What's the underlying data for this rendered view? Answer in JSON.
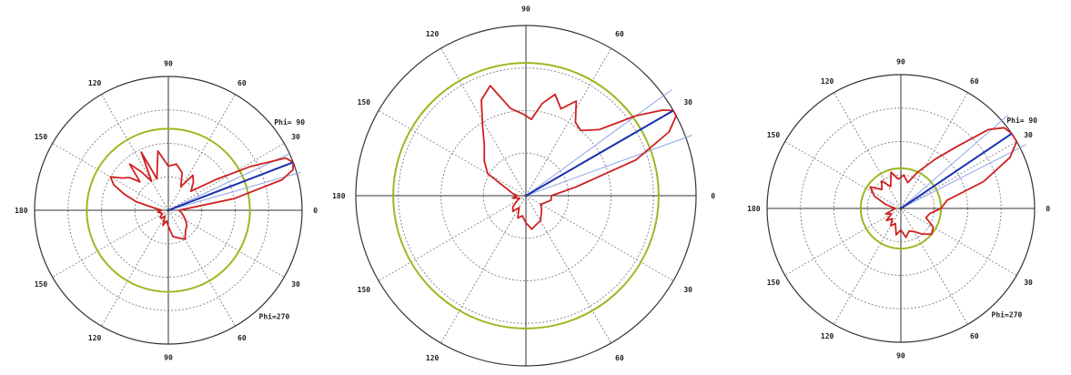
{
  "chart_data": [
    {
      "type": "polar",
      "rings": 4,
      "angle_labels": [
        {
          "deg": 0,
          "text": "0"
        },
        {
          "deg": 30,
          "text": "30"
        },
        {
          "deg": 60,
          "text": "60"
        },
        {
          "deg": 90,
          "text": "90"
        },
        {
          "deg": 120,
          "text": "120"
        },
        {
          "deg": 150,
          "text": "150"
        },
        {
          "deg": 180,
          "text": "180"
        },
        {
          "deg": 210,
          "text": "150"
        },
        {
          "deg": 240,
          "text": "120"
        },
        {
          "deg": 270,
          "text": "90"
        },
        {
          "deg": 300,
          "text": "60"
        },
        {
          "deg": 330,
          "text": "30"
        }
      ],
      "annotations": [
        {
          "deg": 36,
          "text": "Phi= 90"
        },
        {
          "deg": 315,
          "text": "Phi=270"
        }
      ],
      "green_ring": 0.61,
      "main_beam": {
        "deg": 21,
        "r": 1.0
      },
      "aux_lines": [
        {
          "deg": 25,
          "r": 1.0
        },
        {
          "deg": 16,
          "r": 1.03
        }
      ],
      "pattern": {
        "series_color": "#d02020",
        "theta": [
          0,
          10,
          15,
          18,
          21,
          24,
          28,
          33,
          40,
          48,
          55,
          62,
          70,
          80,
          90,
          100,
          110,
          115,
          120,
          125,
          130,
          135,
          140,
          145,
          150,
          155,
          160,
          165,
          170,
          180,
          190,
          200,
          210,
          220,
          230,
          240,
          250,
          260,
          270,
          280,
          290,
          300,
          310,
          320,
          330,
          340,
          350,
          360
        ],
        "r": [
          0.08,
          0.5,
          0.88,
          0.98,
          1.0,
          0.96,
          0.7,
          0.42,
          0.22,
          0.28,
          0.32,
          0.2,
          0.3,
          0.35,
          0.33,
          0.45,
          0.25,
          0.48,
          0.25,
          0.35,
          0.45,
          0.3,
          0.38,
          0.42,
          0.5,
          0.45,
          0.35,
          0.25,
          0.12,
          0.05,
          0.08,
          0.06,
          0.05,
          0.08,
          0.08,
          0.05,
          0.12,
          0.08,
          0.12,
          0.2,
          0.22,
          0.25,
          0.2,
          0.18,
          0.15,
          0.12,
          0.1,
          0.08
        ]
      }
    },
    {
      "type": "polar",
      "rings": 4,
      "angle_labels": [
        {
          "deg": 0,
          "text": "0"
        },
        {
          "deg": 30,
          "text": "30"
        },
        {
          "deg": 60,
          "text": "60"
        },
        {
          "deg": 90,
          "text": "90"
        },
        {
          "deg": 120,
          "text": "120"
        },
        {
          "deg": 150,
          "text": "150"
        },
        {
          "deg": 180,
          "text": "180"
        },
        {
          "deg": 210,
          "text": "150"
        },
        {
          "deg": 240,
          "text": "120"
        },
        {
          "deg": 270,
          "text": "90"
        },
        {
          "deg": 300,
          "text": "60"
        },
        {
          "deg": 330,
          "text": "30"
        }
      ],
      "annotations": [],
      "green_ring": 0.78,
      "main_beam": {
        "deg": 30,
        "r": 1.0
      },
      "aux_lines": [
        {
          "deg": 36,
          "r": 1.06
        },
        {
          "deg": 20,
          "r": 1.04
        }
      ],
      "pattern": {
        "series_color": "#d02020",
        "theta": [
          0,
          10,
          18,
          24,
          28,
          30,
          32,
          36,
          42,
          50,
          56,
          62,
          68,
          74,
          80,
          86,
          92,
          100,
          108,
          115,
          122,
          130,
          140,
          150,
          160,
          170,
          180,
          190,
          200,
          210,
          220,
          230,
          240,
          250,
          260,
          270,
          280,
          290,
          300,
          310,
          320,
          330,
          340,
          350,
          360
        ],
        "r": [
          0.15,
          0.3,
          0.68,
          0.92,
          1.0,
          1.0,
          0.95,
          0.8,
          0.58,
          0.5,
          0.52,
          0.63,
          0.55,
          0.62,
          0.55,
          0.45,
          0.48,
          0.52,
          0.68,
          0.62,
          0.48,
          0.38,
          0.32,
          0.26,
          0.12,
          0.08,
          0.05,
          0.08,
          0.04,
          0.06,
          0.1,
          0.12,
          0.08,
          0.14,
          0.12,
          0.16,
          0.2,
          0.18,
          0.17,
          0.14,
          0.12,
          0.1,
          0.12,
          0.15,
          0.15
        ]
      }
    },
    {
      "type": "polar",
      "rings": 4,
      "angle_labels": [
        {
          "deg": 0,
          "text": "0"
        },
        {
          "deg": 30,
          "text": "30"
        },
        {
          "deg": 60,
          "text": "60"
        },
        {
          "deg": 90,
          "text": "90"
        },
        {
          "deg": 120,
          "text": "120"
        },
        {
          "deg": 150,
          "text": "150"
        },
        {
          "deg": 180,
          "text": "180"
        },
        {
          "deg": 210,
          "text": "150"
        },
        {
          "deg": 240,
          "text": "120"
        },
        {
          "deg": 270,
          "text": "90"
        },
        {
          "deg": 300,
          "text": "60"
        },
        {
          "deg": 330,
          "text": "30"
        }
      ],
      "annotations": [
        {
          "deg": 36,
          "text": "Phi= 90"
        },
        {
          "deg": 315,
          "text": "Phi=270"
        }
      ],
      "green_ring": 0.3,
      "main_beam": {
        "deg": 34,
        "r": 1.0
      },
      "aux_lines": [
        {
          "deg": 41,
          "r": 1.06
        },
        {
          "deg": 27,
          "r": 1.05
        }
      ],
      "pattern": {
        "series_color": "#d02020",
        "theta": [
          0,
          10,
          18,
          25,
          30,
          34,
          38,
          42,
          48,
          55,
          65,
          75,
          85,
          95,
          105,
          115,
          125,
          135,
          145,
          155,
          165,
          175,
          180,
          190,
          200,
          210,
          220,
          230,
          240,
          250,
          260,
          270,
          280,
          290,
          300,
          310,
          320,
          330,
          340,
          350,
          360
        ],
        "r": [
          0.3,
          0.35,
          0.65,
          0.9,
          1.0,
          1.0,
          0.98,
          0.88,
          0.62,
          0.45,
          0.3,
          0.2,
          0.25,
          0.22,
          0.28,
          0.18,
          0.25,
          0.2,
          0.28,
          0.22,
          0.12,
          0.05,
          0.04,
          0.06,
          0.12,
          0.08,
          0.14,
          0.1,
          0.15,
          0.12,
          0.2,
          0.16,
          0.22,
          0.18,
          0.2,
          0.25,
          0.3,
          0.28,
          0.2,
          0.22,
          0.3
        ]
      }
    }
  ]
}
